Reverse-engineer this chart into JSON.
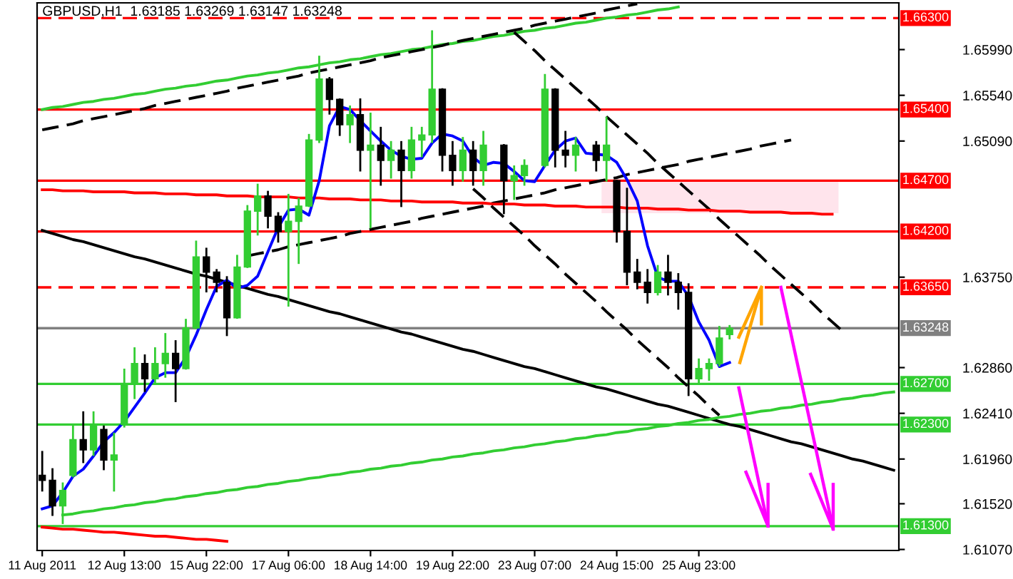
{
  "chart_data": {
    "type": "candlestick",
    "title": "GBPUSD,H1  1.63185 1.63269 1.63147 1.63248",
    "categories": [
      "11 Aug 2011",
      null,
      null,
      null,
      null,
      null,
      null,
      null,
      "12 Aug 13:00",
      null,
      null,
      null,
      null,
      null,
      null,
      null,
      "15 Aug 22:00",
      null,
      null,
      null,
      null,
      null,
      null,
      null,
      "17 Aug 06:00",
      null,
      null,
      null,
      null,
      null,
      null,
      null,
      "18 Aug 14:00",
      null,
      null,
      null,
      null,
      null,
      null,
      null,
      "19 Aug 22:00",
      null,
      null,
      null,
      null,
      null,
      null,
      null,
      "23 Aug 07:00",
      null,
      null,
      null,
      null,
      null,
      null,
      null,
      "24 Aug 15:00",
      null,
      null,
      null,
      null,
      null,
      null,
      null,
      "25 Aug 23:00",
      null,
      null,
      null,
      null,
      null,
      null,
      null,
      null,
      null,
      null,
      null,
      null,
      null,
      null,
      null,
      null,
      null,
      null,
      null
    ],
    "ohlc": [
      [
        1.618,
        1.6203,
        1.6165,
        1.6175
      ],
      [
        1.6175,
        1.6186,
        1.6141,
        1.615
      ],
      [
        1.615,
        1.6172,
        1.6133,
        1.6165
      ],
      [
        1.618,
        1.6228,
        1.6179,
        1.6215
      ],
      [
        1.6215,
        1.6242,
        1.6193,
        1.6205
      ],
      [
        1.6205,
        1.6242,
        1.62,
        1.623
      ],
      [
        1.6225,
        1.6228,
        1.6186,
        1.6195
      ],
      [
        1.6195,
        1.6221,
        1.6165,
        1.62
      ],
      [
        1.623,
        1.6284,
        1.6228,
        1.627
      ],
      [
        1.627,
        1.6305,
        1.6256,
        1.629
      ],
      [
        1.629,
        1.6298,
        1.6263,
        1.6275
      ],
      [
        1.6275,
        1.6305,
        1.627,
        1.629
      ],
      [
        1.629,
        1.6319,
        1.6277,
        1.63
      ],
      [
        1.63,
        1.6312,
        1.6253,
        1.6285
      ],
      [
        1.6285,
        1.6333,
        1.6285,
        1.6325
      ],
      [
        1.6325,
        1.641,
        1.6325,
        1.6395
      ],
      [
        1.6395,
        1.6403,
        1.6361,
        1.638
      ],
      [
        1.638,
        1.6382,
        1.6361,
        1.637
      ],
      [
        1.637,
        1.6375,
        1.6318,
        1.6335
      ],
      [
        1.6335,
        1.6396,
        1.6335,
        1.6385
      ],
      [
        1.6385,
        1.6445,
        1.6385,
        1.644
      ],
      [
        1.644,
        1.6466,
        1.6417,
        1.6455
      ],
      [
        1.6455,
        1.6459,
        1.6424,
        1.6435
      ],
      [
        1.6435,
        1.6438,
        1.641,
        1.642
      ],
      [
        1.642,
        1.6456,
        1.6347,
        1.643
      ],
      [
        1.643,
        1.6452,
        1.6389,
        1.6445
      ],
      [
        1.6445,
        1.6515,
        1.6445,
        1.651
      ],
      [
        1.651,
        1.6592,
        1.6508,
        1.657
      ],
      [
        1.657,
        1.6571,
        1.6536,
        1.655
      ],
      [
        1.655,
        1.655,
        1.6515,
        1.6525
      ],
      [
        1.6525,
        1.6543,
        1.6508,
        1.6535
      ],
      [
        1.6535,
        1.655,
        1.648,
        1.65
      ],
      [
        1.65,
        1.6536,
        1.6424,
        1.6505
      ],
      [
        1.6505,
        1.6522,
        1.6466,
        1.649
      ],
      [
        1.649,
        1.6508,
        1.6473,
        1.65
      ],
      [
        1.65,
        1.6508,
        1.6445,
        1.648
      ],
      [
        1.648,
        1.6522,
        1.6473,
        1.651
      ],
      [
        1.651,
        1.6522,
        1.6494,
        1.6515
      ],
      [
        1.6515,
        1.6617,
        1.6508,
        1.656
      ],
      [
        1.656,
        1.656,
        1.648,
        1.6495
      ],
      [
        1.6495,
        1.6508,
        1.6466,
        1.648
      ],
      [
        1.648,
        1.6512,
        1.647,
        1.65
      ],
      [
        1.65,
        1.6508,
        1.6466,
        1.648
      ],
      [
        1.648,
        1.6518,
        1.6466,
        1.6505
      ],
      null,
      [
        1.6505,
        1.6505,
        1.6438,
        1.647
      ],
      [
        1.647,
        1.6484,
        1.6452,
        1.6475
      ],
      [
        1.6475,
        1.649,
        1.6466,
        1.6485
      ],
      null,
      [
        1.6485,
        1.6574,
        1.6484,
        1.656
      ],
      [
        1.656,
        1.656,
        1.6484,
        1.65
      ],
      [
        1.65,
        1.6518,
        1.6484,
        1.6495
      ],
      [
        1.6495,
        1.6512,
        1.648,
        1.6505
      ],
      null,
      [
        1.6505,
        1.6508,
        1.648,
        1.649
      ],
      [
        1.649,
        1.6532,
        1.647,
        1.6505
      ],
      [
        1.647,
        1.647,
        1.641,
        1.642
      ],
      [
        1.642,
        1.6462,
        1.6368,
        1.638
      ],
      [
        1.638,
        1.6392,
        1.6364,
        1.637
      ],
      [
        1.637,
        1.6382,
        1.635,
        1.636
      ],
      [
        1.636,
        1.6386,
        1.6358,
        1.638
      ],
      [
        1.638,
        1.6396,
        1.6358,
        1.637
      ],
      [
        1.637,
        1.6378,
        1.6344,
        1.636
      ],
      [
        1.636,
        1.6368,
        1.6259,
        1.6275
      ],
      [
        1.6275,
        1.6294,
        1.627,
        1.6285
      ],
      [
        1.6285,
        1.6294,
        1.6274,
        1.629
      ],
      [
        1.629,
        1.6326,
        1.6288,
        1.6315
      ],
      [
        1.63185,
        1.63269,
        1.63147,
        1.63248
      ],
      null,
      null,
      null,
      null,
      null,
      null,
      null,
      null,
      null,
      null,
      null,
      null,
      null,
      null,
      null,
      null
    ],
    "colors": [
      "#000000",
      "#000000",
      "#32cd32",
      "#32cd32",
      "#000000",
      "#32cd32",
      "#000000",
      "#32cd32",
      "#32cd32",
      "#32cd32",
      "#000000",
      "#32cd32",
      "#32cd32",
      "#000000",
      "#32cd32",
      "#32cd32",
      "#000000",
      "#000000",
      "#000000",
      "#32cd32",
      "#32cd32",
      "#32cd32",
      "#000000",
      "#000000",
      "#32cd32",
      "#32cd32",
      "#32cd32",
      "#32cd32",
      "#000000",
      "#000000",
      "#32cd32",
      "#000000",
      "#32cd32",
      "#000000",
      "#32cd32",
      "#000000",
      "#32cd32",
      "#32cd32",
      "#32cd32",
      "#000000",
      "#000000",
      "#32cd32",
      "#000000",
      "#32cd32",
      null,
      "#000000",
      "#32cd32",
      "#32cd32",
      null,
      "#32cd32",
      "#000000",
      "#000000",
      "#32cd32",
      null,
      "#000000",
      "#32cd32",
      "#000000",
      "#000000",
      "#000000",
      "#000000",
      "#32cd32",
      "#000000",
      "#000000",
      "#000000",
      "#32cd32",
      "#32cd32",
      "#32cd32",
      "#32cd32",
      null,
      null,
      null,
      null,
      null,
      null,
      null,
      null,
      null,
      null,
      null,
      null,
      null,
      null,
      null,
      null
    ],
    "series": [
      {
        "type": "line",
        "color": "#32cd32",
        "values": [
          1.654,
          1.6542,
          1.6543,
          1.6545,
          1.6547,
          1.6548,
          1.655,
          1.6551,
          1.6553,
          1.6555,
          1.6556,
          1.6558,
          1.656,
          1.6561,
          1.6563,
          1.6564,
          1.6566,
          1.6568,
          1.6569,
          1.6571,
          1.6573,
          1.6574,
          1.6576,
          1.6577,
          1.6579,
          1.6581,
          1.6582,
          1.6584,
          1.6586,
          1.6587,
          1.6589,
          1.659,
          1.6592,
          1.6594,
          1.6595,
          1.6597,
          1.6599,
          1.66,
          1.6602,
          1.6604,
          1.6605,
          1.6607,
          1.6608,
          1.661,
          1.6612,
          1.6613,
          1.6615,
          1.6617,
          1.6618,
          1.662,
          1.6621,
          1.6623,
          1.6625,
          1.6626,
          1.6628,
          1.663,
          1.6631,
          1.6633,
          1.6634,
          1.6636,
          1.6638,
          1.6639,
          1.6641,
          null,
          null,
          null,
          null,
          null,
          null,
          null,
          null,
          null,
          null,
          null,
          null,
          null,
          null,
          null,
          null,
          null,
          null,
          null,
          null,
          null
        ]
      },
      {
        "type": "line",
        "color": "#000000",
        "line_style": "dashed",
        "values": [
          1.652,
          1.6522,
          1.6524,
          1.6526,
          1.6529,
          1.6531,
          1.6533,
          1.6535,
          1.6537,
          1.6539,
          1.6541,
          1.6544,
          1.6546,
          1.6548,
          1.655,
          1.6552,
          1.6554,
          1.6556,
          1.6558,
          1.6561,
          1.6563,
          1.6565,
          1.6567,
          1.6569,
          1.6571,
          1.6573,
          1.6576,
          1.6578,
          1.658,
          1.6582,
          1.6584,
          1.6586,
          1.6588,
          1.6591,
          1.6593,
          1.6595,
          1.6597,
          1.6599,
          1.6601,
          1.6603,
          1.6606,
          1.6608,
          1.661,
          1.6612,
          1.6614,
          1.6616,
          1.6618,
          1.662,
          1.6623,
          1.6625,
          1.6627,
          1.6629,
          1.6631,
          1.6633,
          1.6635,
          1.6638,
          1.664,
          1.6642,
          1.6644,
          null,
          null,
          null,
          null,
          null,
          null,
          null,
          null,
          null,
          null,
          null,
          null,
          null,
          null,
          null,
          null,
          null,
          null,
          null,
          null,
          null,
          null,
          null,
          null,
          null
        ]
      },
      {
        "type": "line",
        "color": "#000000",
        "line_style": "dashed",
        "values": [
          null,
          null,
          null,
          null,
          null,
          null,
          null,
          null,
          null,
          null,
          null,
          null,
          null,
          null,
          null,
          null,
          null,
          null,
          null,
          null,
          1.6396,
          1.6398,
          1.64,
          1.6402,
          1.6405,
          1.6407,
          1.6409,
          1.6411,
          1.6413,
          1.6415,
          1.6418,
          1.642,
          1.6422,
          1.6424,
          1.6426,
          1.6428,
          1.643,
          1.6433,
          1.6435,
          1.6437,
          1.6439,
          1.6441,
          1.6443,
          1.6445,
          1.6448,
          1.645,
          1.6452,
          1.6454,
          1.6456,
          1.6458,
          1.6461,
          1.6463,
          1.6465,
          1.6467,
          1.6469,
          1.6471,
          1.6473,
          1.6476,
          1.6478,
          1.648,
          1.6482,
          1.6484,
          1.6486,
          1.6489,
          1.6491,
          1.6493,
          1.6495,
          1.6497,
          1.6499,
          1.6501,
          1.6504,
          1.6506,
          1.6508,
          1.651,
          null,
          null,
          null,
          null,
          null,
          null,
          null,
          null,
          null,
          null
        ]
      },
      {
        "type": "line",
        "color": "#000000",
        "line_style": "dashed",
        "values": [
          null,
          null,
          null,
          null,
          null,
          null,
          null,
          null,
          null,
          null,
          null,
          null,
          null,
          null,
          null,
          null,
          null,
          null,
          null,
          null,
          null,
          null,
          null,
          null,
          null,
          null,
          null,
          null,
          null,
          null,
          null,
          null,
          null,
          null,
          null,
          null,
          null,
          null,
          null,
          null,
          null,
          null,
          null,
          null,
          null,
          null,
          1.6616,
          1.6607,
          1.6598,
          1.6588,
          1.6579,
          1.657,
          1.6561,
          1.6552,
          1.6543,
          1.6533,
          1.6524,
          1.6515,
          1.6506,
          1.6497,
          1.6487,
          1.6478,
          1.6469,
          1.646,
          1.6451,
          1.6442,
          1.6432,
          1.6423,
          1.6414,
          1.6405,
          1.6396,
          1.6386,
          1.6377,
          1.6368,
          1.6359,
          1.635,
          1.634,
          1.6331,
          1.6322,
          null,
          null,
          null,
          null,
          null
        ]
      },
      {
        "type": "line",
        "color": "#000000",
        "line_style": "dashed",
        "values": [
          null,
          null,
          null,
          null,
          null,
          null,
          null,
          null,
          null,
          null,
          null,
          null,
          null,
          null,
          null,
          null,
          null,
          null,
          null,
          null,
          null,
          null,
          null,
          null,
          null,
          null,
          null,
          null,
          null,
          null,
          null,
          null,
          null,
          null,
          null,
          null,
          null,
          null,
          null,
          null,
          null,
          null,
          1.6462,
          1.6453,
          1.6443,
          1.6434,
          1.6425,
          1.6416,
          1.6406,
          1.6397,
          1.6388,
          1.6378,
          1.6369,
          1.636,
          1.6351,
          1.6341,
          1.6332,
          1.6323,
          1.6313,
          1.6304,
          1.6295,
          1.6286,
          1.6276,
          1.6267,
          1.6258,
          1.6248,
          1.6239,
          null,
          null,
          null,
          null,
          null,
          null,
          null,
          null,
          null,
          null,
          null,
          null,
          null,
          null,
          null,
          null,
          null
        ]
      },
      {
        "type": "line",
        "color": "#000000",
        "values": [
          1.6421,
          1.6418,
          1.6415,
          1.6412,
          1.641,
          1.6407,
          1.6404,
          1.6401,
          1.6398,
          1.6395,
          1.6393,
          1.639,
          1.6387,
          1.6384,
          1.6381,
          1.6378,
          1.6376,
          1.6373,
          1.637,
          1.6367,
          1.6364,
          1.6361,
          1.6358,
          1.6356,
          1.6353,
          1.635,
          1.6347,
          1.6344,
          1.6341,
          1.6339,
          1.6336,
          1.6333,
          1.633,
          1.6327,
          1.6324,
          1.6321,
          1.6319,
          1.6316,
          1.6313,
          1.631,
          1.6307,
          1.6304,
          1.6302,
          1.6299,
          1.6296,
          1.6293,
          1.629,
          1.6287,
          1.6285,
          1.6282,
          1.6279,
          1.6276,
          1.6273,
          1.627,
          1.6267,
          1.6265,
          1.6262,
          1.6259,
          1.6256,
          1.6253,
          1.625,
          1.6248,
          1.6245,
          1.6242,
          1.6239,
          1.6236,
          1.6233,
          1.623,
          1.6228,
          1.6225,
          1.6222,
          1.6219,
          1.6216,
          1.6213,
          1.6211,
          1.6208,
          1.6205,
          1.6202,
          1.6199,
          1.6196,
          1.6194,
          1.6191,
          1.6188,
          1.6185
        ]
      },
      {
        "type": "line",
        "color": "#32cd32",
        "values": [
          null,
          null,
          1.6141,
          1.6142,
          1.6144,
          1.6145,
          1.6147,
          1.6148,
          1.615,
          1.6151,
          1.6153,
          1.6154,
          1.6156,
          1.6157,
          1.6159,
          1.616,
          1.6162,
          1.6163,
          1.6165,
          1.6166,
          1.6168,
          1.6169,
          1.6171,
          1.6172,
          1.6174,
          1.6175,
          1.6177,
          1.6178,
          1.618,
          1.6181,
          1.6183,
          1.6184,
          1.6186,
          1.6187,
          1.6189,
          1.619,
          1.6192,
          1.6193,
          1.6195,
          1.6196,
          1.6198,
          1.6199,
          1.6201,
          1.6202,
          1.6204,
          1.6205,
          1.6207,
          1.6208,
          1.621,
          1.6211,
          1.6213,
          1.6214,
          1.6216,
          1.6217,
          1.6219,
          1.622,
          1.6222,
          1.6223,
          1.6225,
          1.6226,
          1.6228,
          1.6229,
          1.6231,
          1.6232,
          1.6234,
          1.6235,
          1.6237,
          1.6238,
          1.624,
          1.6241,
          1.6243,
          1.6244,
          1.6246,
          1.6247,
          1.6249,
          1.625,
          1.6252,
          1.6253,
          1.6255,
          1.6256,
          1.6258,
          1.6259,
          1.6261,
          1.6262
        ]
      },
      {
        "type": "line",
        "color": "#ff0000",
        "values": [
          1.6461,
          1.6461,
          1.646,
          1.646,
          1.646,
          1.6459,
          1.6459,
          1.6459,
          1.6459,
          1.6458,
          1.6458,
          1.6458,
          1.6457,
          1.6457,
          1.6457,
          1.6456,
          1.6456,
          1.6456,
          1.6455,
          1.6455,
          1.6455,
          1.6454,
          1.6454,
          1.6454,
          1.6454,
          1.6453,
          1.6453,
          1.6453,
          1.6452,
          1.6452,
          1.6452,
          1.6451,
          1.6451,
          1.6451,
          1.645,
          1.645,
          1.645,
          1.6449,
          1.6449,
          1.6449,
          1.6449,
          1.6448,
          1.6448,
          1.6448,
          1.6447,
          1.6447,
          1.6447,
          1.6446,
          1.6446,
          1.6446,
          1.6445,
          1.6445,
          1.6445,
          1.6444,
          1.6444,
          1.6444,
          1.6444,
          1.6443,
          1.6443,
          1.6443,
          1.6442,
          1.6442,
          1.6442,
          1.6441,
          1.6441,
          1.6441,
          1.644,
          1.644,
          1.644,
          1.6439,
          1.6439,
          1.6439,
          1.6439,
          1.6438,
          1.6438,
          1.6438,
          1.6437,
          1.6437,
          null,
          null,
          null,
          null,
          null,
          null
        ]
      },
      {
        "type": "line",
        "color": "#ff0000",
        "values": [
          1.6129,
          1.6128,
          1.6127,
          1.6127,
          1.6126,
          1.6125,
          1.6124,
          1.6124,
          1.6123,
          1.6122,
          1.6121,
          1.612,
          1.612,
          1.6119,
          1.6118,
          1.6117,
          1.6117,
          1.6116,
          1.6115,
          null,
          null,
          null,
          null,
          null,
          null,
          null,
          null,
          null,
          null,
          null,
          null,
          null,
          null,
          null,
          null,
          null,
          null,
          null,
          null,
          null,
          null,
          null,
          null,
          null,
          null,
          null,
          null,
          null,
          null,
          null,
          null,
          null,
          null,
          null,
          null,
          null,
          null,
          null,
          null,
          null,
          null,
          null,
          null,
          null,
          null,
          null,
          null,
          null,
          null,
          null,
          null,
          null,
          null,
          null,
          null,
          null,
          null,
          null,
          null,
          null,
          null,
          null,
          null,
          null
        ]
      },
      {
        "type": "line",
        "color": "#0000ff",
        "values": [
          1.6147,
          1.615,
          1.6163,
          1.6179,
          1.6186,
          1.6199,
          1.6213,
          1.6222,
          1.6233,
          1.6247,
          1.6261,
          1.6276,
          1.6281,
          1.6281,
          1.6296,
          1.6318,
          1.6343,
          1.6366,
          1.6372,
          1.6364,
          1.6367,
          1.6376,
          1.64,
          1.6424,
          1.6441,
          1.6442,
          1.6436,
          1.647,
          1.6524,
          1.6543,
          1.654,
          1.6529,
          1.6519,
          1.6509,
          1.65,
          1.6494,
          1.6491,
          1.6492,
          1.6507,
          1.6516,
          1.6514,
          1.6509,
          1.6493,
          1.6485,
          1.6488,
          1.6487,
          1.6479,
          1.647,
          1.6469,
          1.6485,
          1.65,
          1.6509,
          1.6512,
          1.6497,
          1.6496,
          1.6495,
          1.6488,
          1.6471,
          1.645,
          1.6406,
          1.6375,
          1.6371,
          1.6371,
          1.6356,
          1.6331,
          1.6313,
          1.6287,
          1.6291,
          null,
          null,
          null,
          null,
          null,
          null,
          null,
          null,
          null,
          null,
          null,
          null,
          null,
          null,
          null,
          null
        ]
      }
    ],
    "bands": [
      {
        "axis": "y",
        "from": 1.6438,
        "to": 1.647,
        "color": "#ffe4ec"
      }
    ],
    "ref_lines": [
      {
        "axis": "y",
        "value": 1.663,
        "label": "1.66300",
        "color": "#ff0000",
        "line_style": "dashed"
      },
      {
        "axis": "y",
        "value": 1.654,
        "label": "1.65400",
        "color": "#ff0000"
      },
      {
        "axis": "y",
        "value": 1.647,
        "label": "1.64700",
        "color": "#ff0000"
      },
      {
        "axis": "y",
        "value": 1.642,
        "label": "1.64200",
        "color": "#ff0000"
      },
      {
        "axis": "y",
        "value": 1.6365,
        "label": "1.63650",
        "color": "#ff0000",
        "line_style": "dashed"
      },
      {
        "axis": "y",
        "value": 1.63248,
        "label": "1.63248",
        "color": "#808080"
      },
      {
        "axis": "y",
        "value": 1.627,
        "label": "1.62700",
        "color": "#32cd32"
      },
      {
        "axis": "y",
        "value": 1.623,
        "label": "1.62300",
        "color": "#32cd32"
      },
      {
        "axis": "y",
        "value": 1.613,
        "label": "1.61300",
        "color": "#32cd32"
      }
    ],
    "ylim": [
      1.6106,
      1.6645
    ],
    "yticks": [
      {
        "value": 1.6599,
        "label": "1.65990"
      },
      {
        "value": 1.6554,
        "label": "1.65540"
      },
      {
        "value": 1.6509,
        "label": "1.65090"
      },
      {
        "value": 1.6375,
        "label": "1.63750"
      },
      {
        "value": 1.6286,
        "label": "1.62860"
      },
      {
        "value": 1.6241,
        "label": "1.62410"
      },
      {
        "value": 1.6196,
        "label": "1.61960"
      },
      {
        "value": 1.6152,
        "label": "1.61520"
      },
      {
        "value": 1.6107,
        "label": "1.61070"
      }
    ]
  }
}
